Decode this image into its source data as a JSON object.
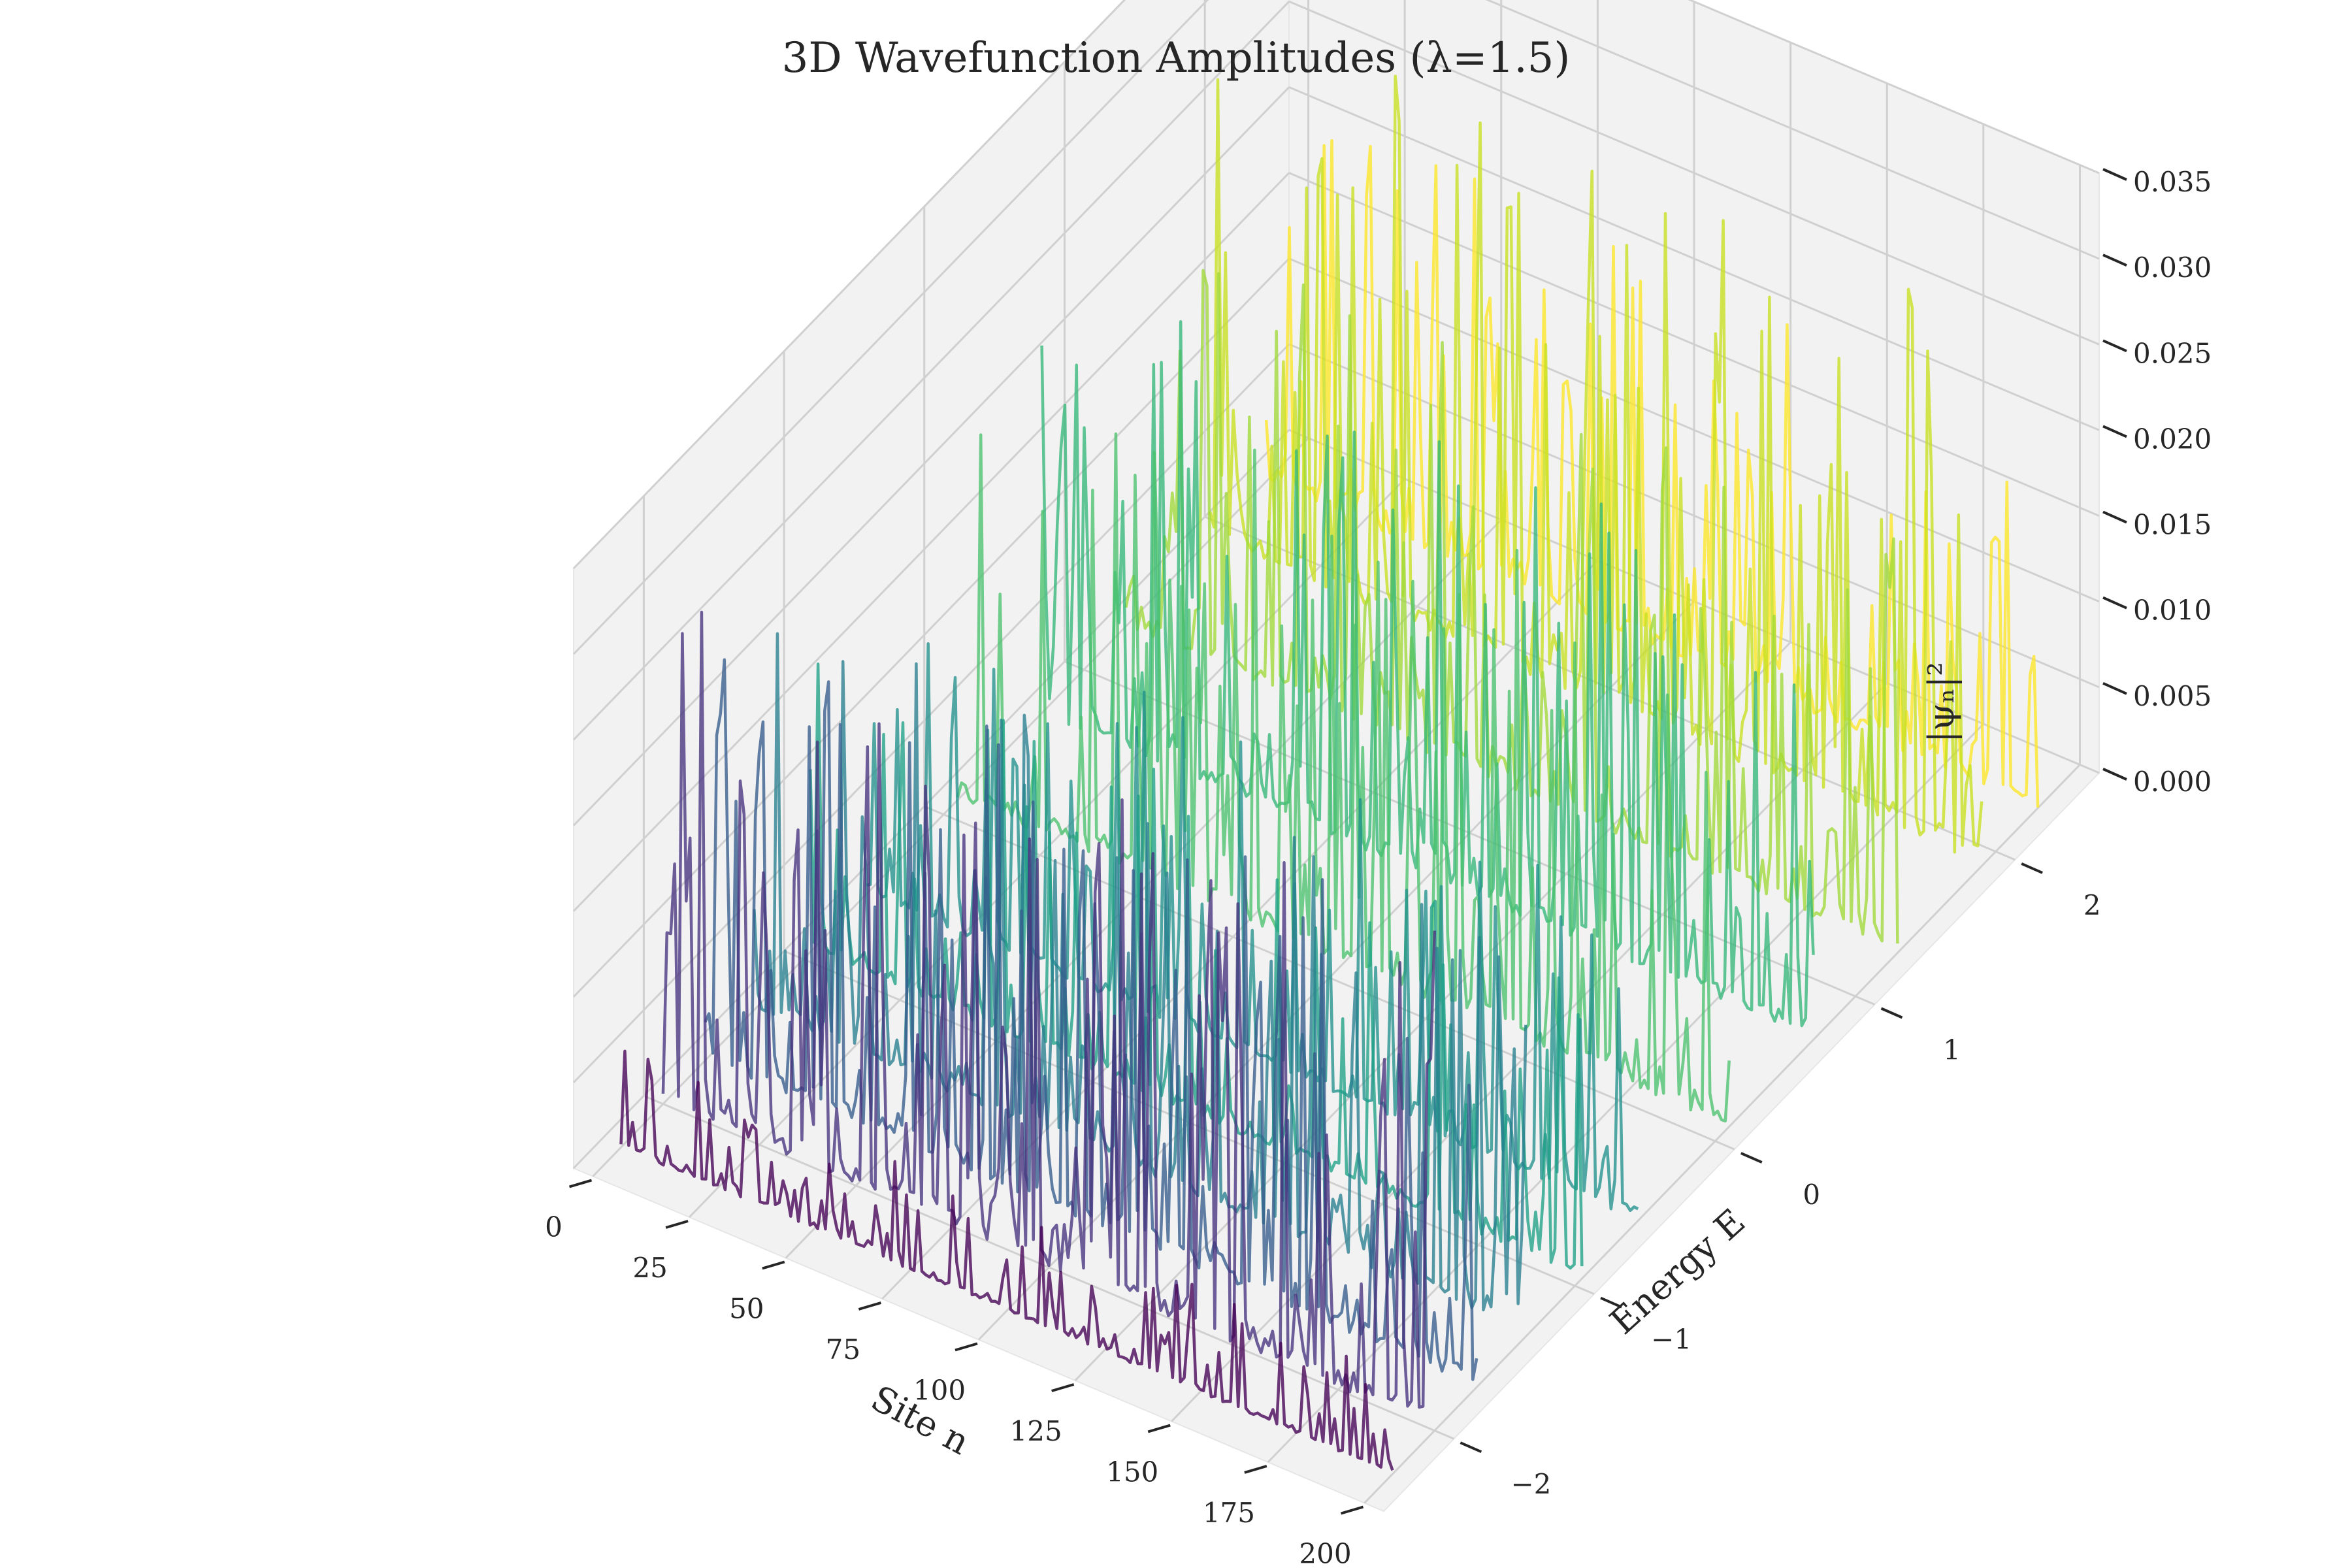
{
  "chart_data": {
    "type": "line",
    "title": "3D Wavefunction Amplitudes (λ=1.5)",
    "xlabel": "Site n",
    "ylabel": "Energy E",
    "zlabel": "|ψₙ|²",
    "x_ticks": [
      "0",
      "25",
      "50",
      "75",
      "100",
      "125",
      "150",
      "175",
      "200"
    ],
    "y_ticks": [
      "−2",
      "−1",
      "0",
      "1",
      "2"
    ],
    "z_ticks": [
      "0.000",
      "0.005",
      "0.010",
      "0.015",
      "0.020",
      "0.025",
      "0.030",
      "0.035"
    ],
    "xlim": [
      -5,
      205
    ],
    "ylim": [
      -2.5,
      2.6
    ],
    "zlim": [
      0,
      0.035
    ],
    "grid": true,
    "colormap": "viridis",
    "series": [
      {
        "energy": -2.3,
        "color": "#440154",
        "peak": 0.006
      },
      {
        "energy": -2.0,
        "color": "#46327e",
        "peak": 0.03
      },
      {
        "energy": -1.7,
        "color": "#365c8d",
        "peak": 0.026
      },
      {
        "energy": -1.35,
        "color": "#277f8e",
        "peak": 0.024
      },
      {
        "energy": -0.95,
        "color": "#1fa187",
        "peak": 0.019
      },
      {
        "energy": -0.55,
        "color": "#21918c",
        "peak": 0.018
      },
      {
        "energy": 0.1,
        "color": "#4ac16d",
        "peak": 0.028
      },
      {
        "energy": 0.7,
        "color": "#35b779",
        "peak": 0.026
      },
      {
        "energy": 1.3,
        "color": "#a0da39",
        "peak": 0.024
      },
      {
        "energy": 1.9,
        "color": "#c8e020",
        "peak": 0.031
      },
      {
        "energy": 2.3,
        "color": "#fde725",
        "peak": 0.022
      }
    ]
  }
}
